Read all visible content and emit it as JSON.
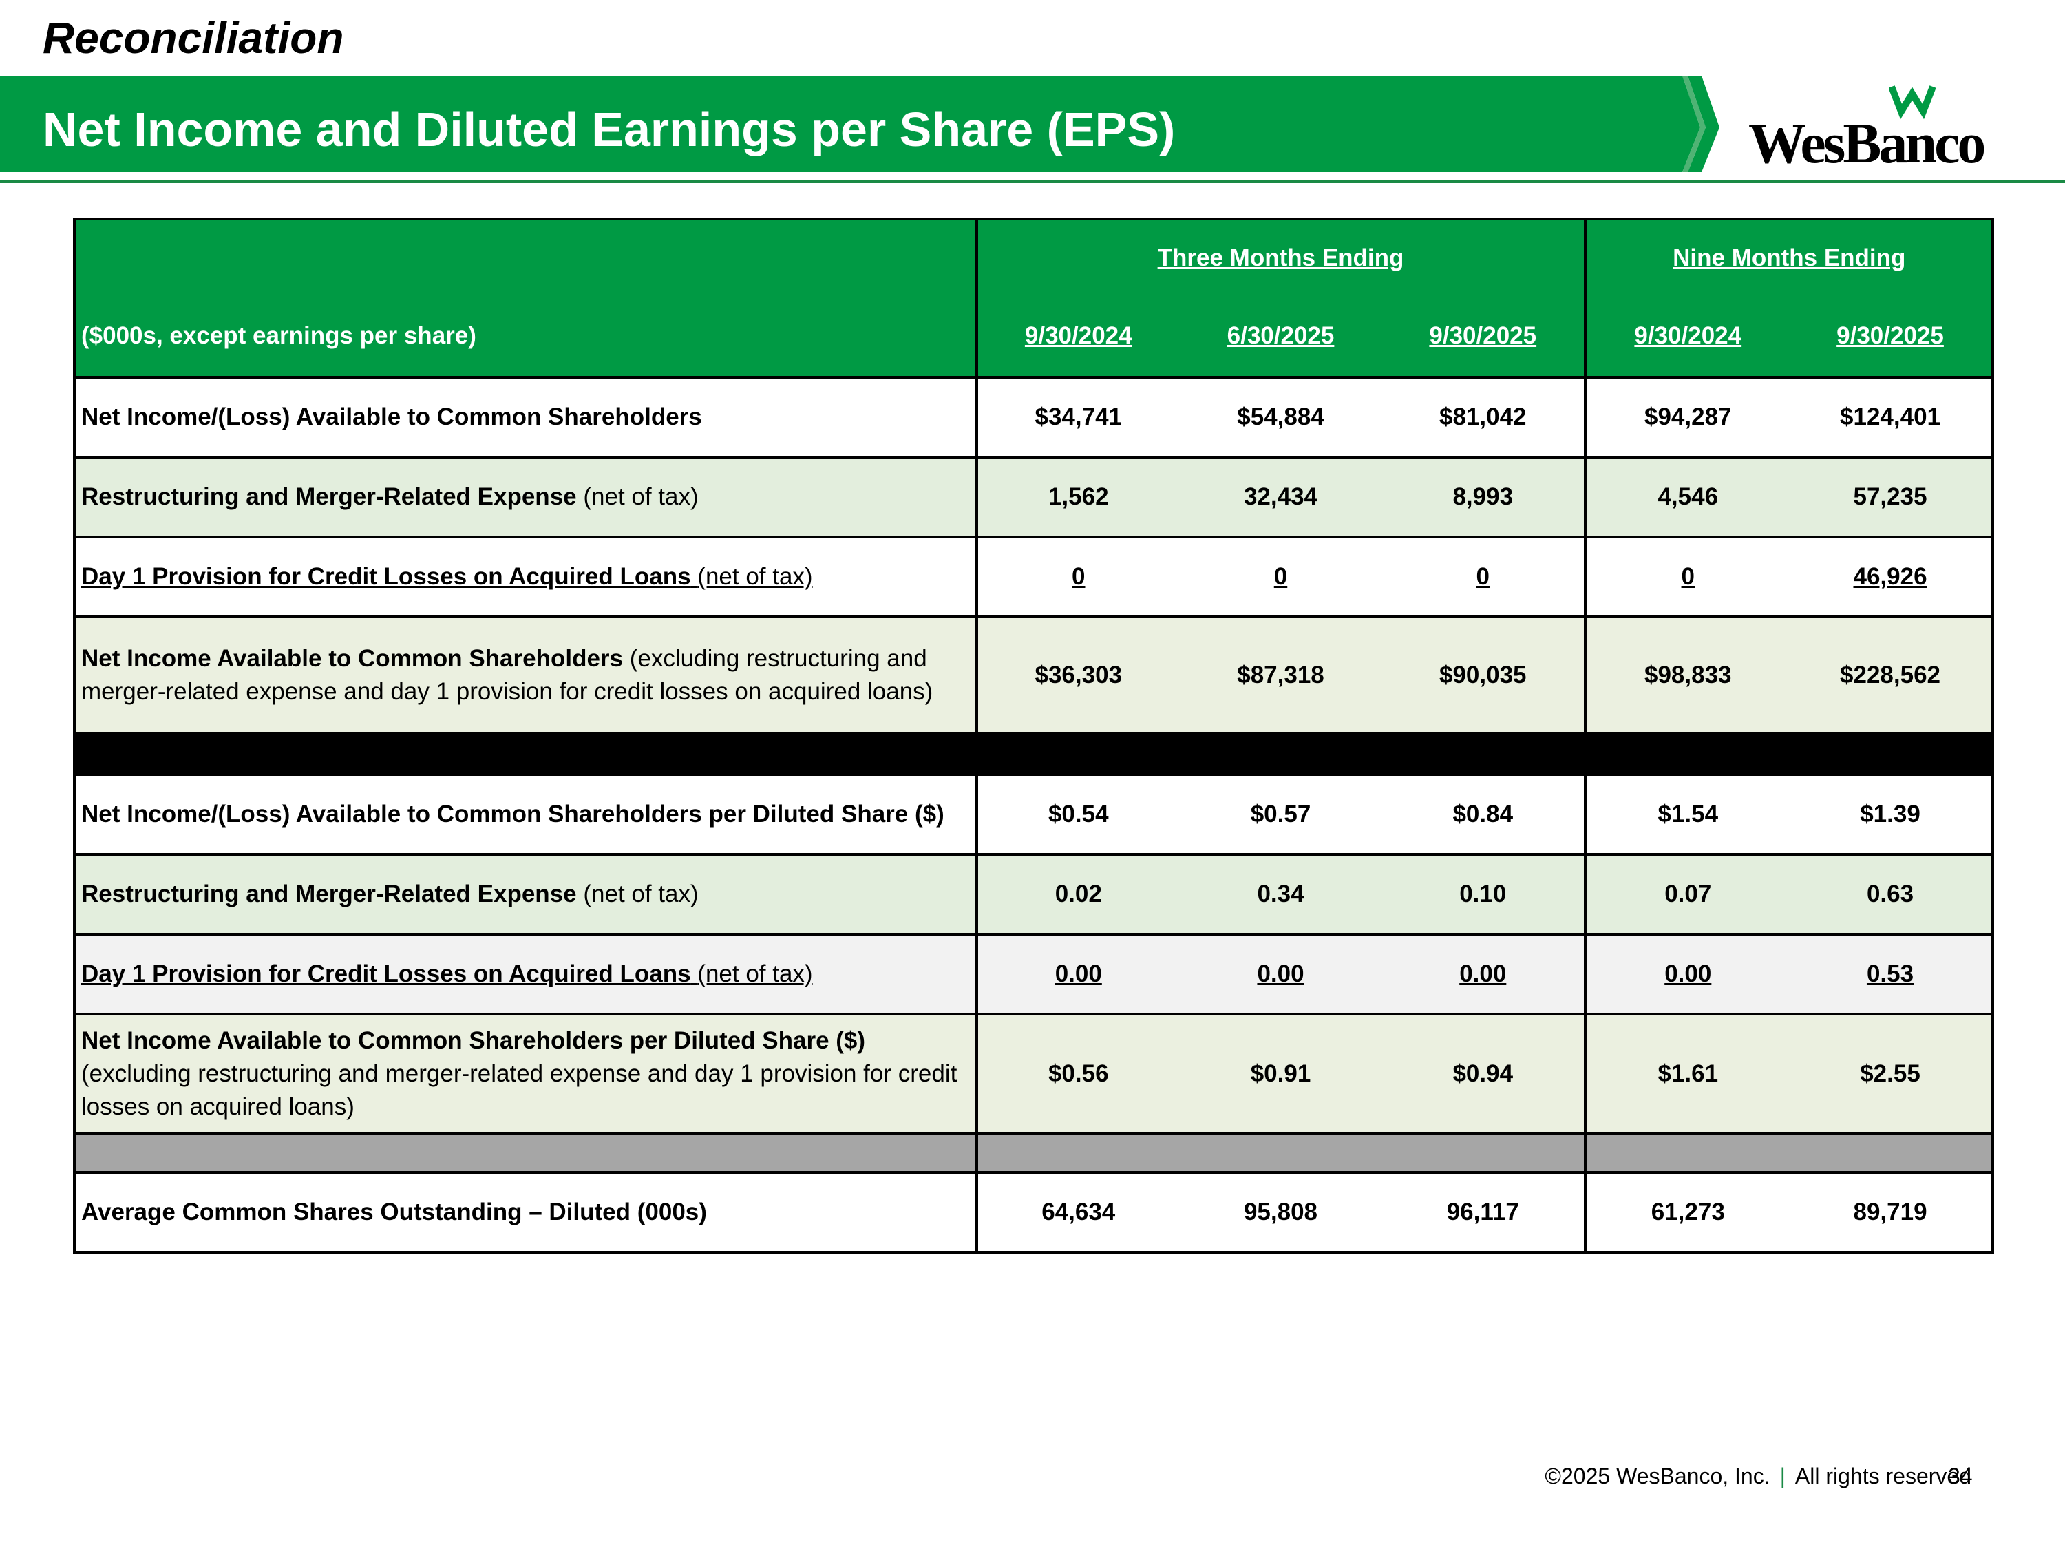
{
  "header": {
    "section": "Reconciliation",
    "title": "Net Income and Diluted Earnings per Share (EPS)",
    "logo_text": "WesBanco",
    "brand_color": "#009a44"
  },
  "table": {
    "units_label": "($000s, except earnings per share)",
    "group_three": "Three Months Ending",
    "group_nine": "Nine Months Ending",
    "dates": [
      "9/30/2024",
      "6/30/2025",
      "9/30/2025",
      "9/30/2024",
      "9/30/2025"
    ],
    "rows": [
      {
        "bold": "Net Income/(Loss) Available to Common Shareholders",
        "rest": "",
        "values": [
          "$34,741",
          "$54,884",
          "$81,042",
          "$94,287",
          "$124,401"
        ]
      },
      {
        "bold": "Restructuring and Merger-Related Expense",
        "rest": "(net of tax)",
        "values": [
          "1,562",
          "32,434",
          "8,993",
          "4,546",
          "57,235"
        ]
      },
      {
        "bold": "Day 1 Provision for Credit Losses on Acquired Loans",
        "rest": "(net of tax)",
        "values": [
          "0",
          "0",
          "0",
          "0",
          "46,926"
        ]
      },
      {
        "bold": "Net Income Available to Common Shareholders",
        "rest": "(excluding restructuring and merger-related expense and day 1 provision for credit losses on acquired loans)",
        "values": [
          "$36,303",
          "$87,318",
          "$90,035",
          "$98,833",
          "$228,562"
        ]
      },
      {
        "bold": "Net Income/(Loss) Available to Common Shareholders per Diluted Share ($)",
        "rest": "",
        "values": [
          "$0.54",
          "$0.57",
          "$0.84",
          "$1.54",
          "$1.39"
        ]
      },
      {
        "bold": "Restructuring and Merger-Related Expense",
        "rest": "(net of tax)",
        "values": [
          "0.02",
          "0.34",
          "0.10",
          "0.07",
          "0.63"
        ]
      },
      {
        "bold": "Day 1 Provision for Credit Losses on Acquired Loans",
        "rest": "(net of tax)",
        "values": [
          "0.00",
          "0.00",
          "0.00",
          "0.00",
          "0.53"
        ]
      },
      {
        "bold": "Net Income Available to Common Shareholders per Diluted Share ($)",
        "rest": "(excluding restructuring and merger-related expense and day 1 provision for credit losses on acquired loans)",
        "values": [
          "$0.56",
          "$0.91",
          "$0.94",
          "$1.61",
          "$2.55"
        ]
      },
      {
        "bold": "Average Common Shares Outstanding – Diluted (000s)",
        "rest": "",
        "values": [
          "64,634",
          "95,808",
          "96,117",
          "61,273",
          "89,719"
        ]
      }
    ]
  },
  "footer": {
    "copyright": "©2025 WesBanco, Inc.",
    "separator": "|",
    "rights": "All rights reserved",
    "page": "34"
  }
}
